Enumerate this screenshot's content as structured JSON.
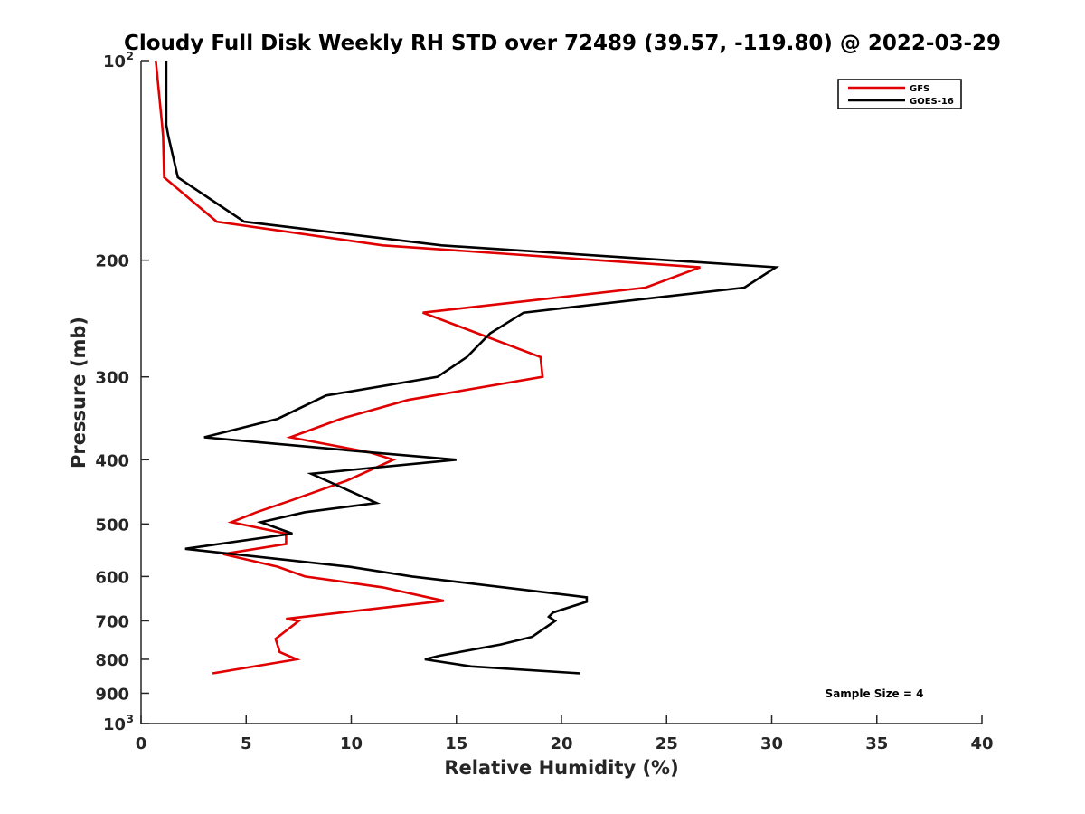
{
  "chart_data": {
    "type": "line",
    "title": "Cloudy Full Disk Weekly RH STD over 72489 (39.57, -119.80) @ 2022-03-29",
    "xlabel": "Relative Humidity (%)",
    "ylabel": "Pressure (mb)",
    "xlim": [
      0,
      40
    ],
    "ylim": [
      100,
      1000
    ],
    "y_scale": "log",
    "y_reversed": true,
    "x_ticks": [
      "0",
      "5",
      "10",
      "15",
      "20",
      "25",
      "30",
      "35",
      "40"
    ],
    "y_ticks": [
      {
        "value": 100,
        "label": "10",
        "sup": "2"
      },
      {
        "value": 200,
        "label": "200",
        "sup": ""
      },
      {
        "value": 300,
        "label": "300",
        "sup": ""
      },
      {
        "value": 400,
        "label": "400",
        "sup": ""
      },
      {
        "value": 500,
        "label": "500",
        "sup": ""
      },
      {
        "value": 600,
        "label": "600",
        "sup": ""
      },
      {
        "value": 700,
        "label": "700",
        "sup": ""
      },
      {
        "value": 800,
        "label": "800",
        "sup": ""
      },
      {
        "value": 900,
        "label": "900",
        "sup": ""
      },
      {
        "value": 1000,
        "label": "10",
        "sup": "3"
      }
    ],
    "legend_position": "top-right",
    "grid": false,
    "annotation": "Sample Size = 4",
    "series": [
      {
        "name": "GFS",
        "color": "#e00000",
        "points": [
          [
            0.7,
            100
          ],
          [
            1.0,
            125
          ],
          [
            1.05,
            130
          ],
          [
            1.1,
            150
          ],
          [
            3.6,
            175
          ],
          [
            11.5,
            190
          ],
          [
            26.6,
            205
          ],
          [
            24.0,
            220
          ],
          [
            13.4,
            240
          ],
          [
            19.0,
            280
          ],
          [
            19.1,
            300
          ],
          [
            12.7,
            325
          ],
          [
            9.5,
            347
          ],
          [
            7.1,
            370
          ],
          [
            10.9,
            390
          ],
          [
            12.0,
            400
          ],
          [
            9.8,
            430
          ],
          [
            7.2,
            460
          ],
          [
            5.5,
            480
          ],
          [
            4.3,
            497
          ],
          [
            6.9,
            517
          ],
          [
            6.9,
            536
          ],
          [
            3.9,
            555
          ],
          [
            6.5,
            580
          ],
          [
            7.8,
            600
          ],
          [
            11.5,
            623
          ],
          [
            14.4,
            653
          ],
          [
            6.9,
            695
          ],
          [
            7.5,
            700
          ],
          [
            6.4,
            745
          ],
          [
            6.6,
            780
          ],
          [
            7.4,
            800
          ],
          [
            3.4,
            840
          ]
        ]
      },
      {
        "name": "GOES-16",
        "color": "#000000",
        "points": [
          [
            1.2,
            100
          ],
          [
            1.2,
            125
          ],
          [
            1.3,
            130
          ],
          [
            1.75,
            150
          ],
          [
            4.9,
            175
          ],
          [
            14.3,
            190
          ],
          [
            30.2,
            205
          ],
          [
            28.7,
            220
          ],
          [
            18.2,
            240
          ],
          [
            16.6,
            258
          ],
          [
            15.5,
            280
          ],
          [
            14.1,
            300
          ],
          [
            8.8,
            320
          ],
          [
            6.5,
            347
          ],
          [
            3.0,
            370
          ],
          [
            11.0,
            390
          ],
          [
            15.0,
            400
          ],
          [
            8.1,
            420
          ],
          [
            11.2,
            465
          ],
          [
            7.8,
            480
          ],
          [
            5.7,
            497
          ],
          [
            7.2,
            517
          ],
          [
            2.1,
            545
          ],
          [
            9.9,
            580
          ],
          [
            12.9,
            600
          ],
          [
            21.2,
            645
          ],
          [
            21.2,
            655
          ],
          [
            19.6,
            680
          ],
          [
            19.4,
            690
          ],
          [
            19.7,
            700
          ],
          [
            18.6,
            740
          ],
          [
            17.1,
            760
          ],
          [
            14.2,
            790
          ],
          [
            13.5,
            800
          ],
          [
            15.7,
            820
          ],
          [
            20.9,
            840
          ]
        ]
      }
    ]
  }
}
